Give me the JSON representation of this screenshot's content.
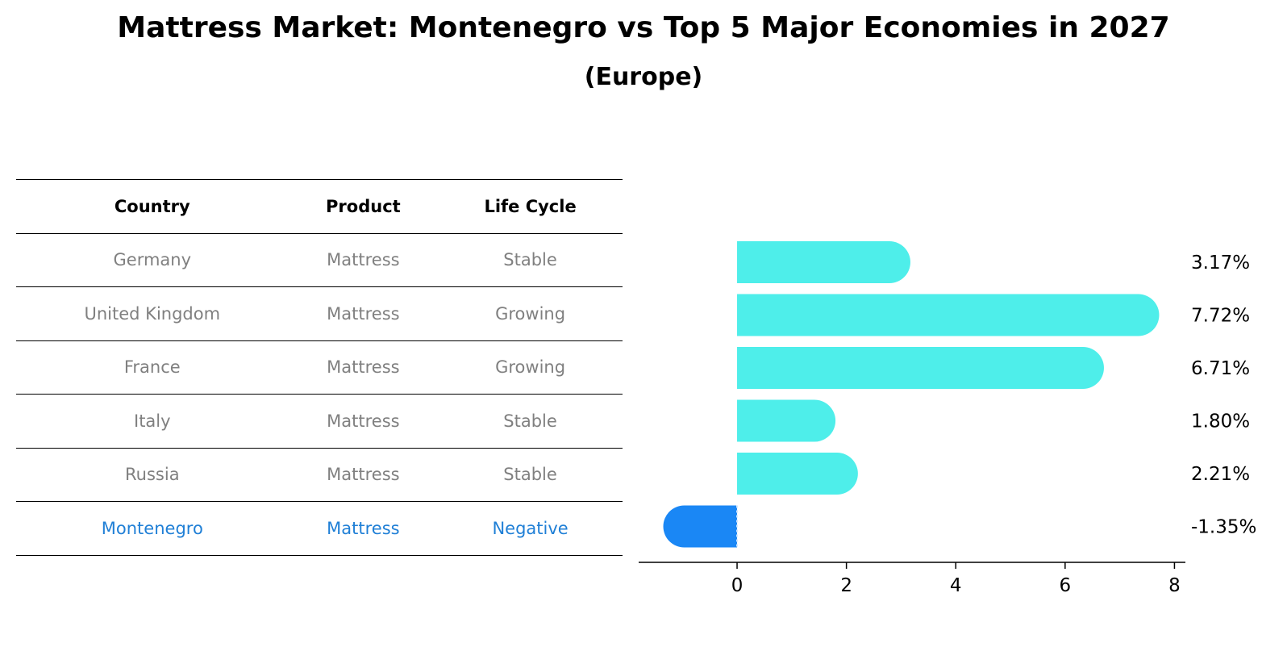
{
  "header": {
    "title": "Mattress Market: Montenegro vs Top 5 Major Economies in 2027",
    "subtitle": "(Europe)"
  },
  "table": {
    "columns": [
      "Country",
      "Product",
      "Life Cycle"
    ],
    "rows": [
      {
        "country": "Germany",
        "product": "Mattress",
        "life_cycle": "Stable"
      },
      {
        "country": "United Kingdom",
        "product": "Mattress",
        "life_cycle": "Growing"
      },
      {
        "country": "France",
        "product": "Mattress",
        "life_cycle": "Growing"
      },
      {
        "country": "Italy",
        "product": "Mattress",
        "life_cycle": "Stable"
      },
      {
        "country": "Russia",
        "product": "Mattress",
        "life_cycle": "Stable"
      },
      {
        "country": "Montenegro",
        "product": "Mattress",
        "life_cycle": "Negative"
      }
    ],
    "highlight_color": "#1f7fd6",
    "text_color": "#808080"
  },
  "chart_data": {
    "type": "bar",
    "orientation": "horizontal",
    "categories": [
      "Germany",
      "United Kingdom",
      "France",
      "Italy",
      "Russia",
      "Montenegro"
    ],
    "values": [
      3.17,
      7.72,
      6.71,
      1.8,
      2.21,
      -1.35
    ],
    "value_labels": [
      "3.17%",
      "7.72%",
      "6.71%",
      "1.80%",
      "2.21%",
      "-1.35%"
    ],
    "xlim": [
      -1.8,
      8.2
    ],
    "xticks": [
      0,
      2,
      4,
      6,
      8
    ],
    "bar_color": "#4eeeea",
    "highlight_color": "#1a87f5",
    "grid": false
  }
}
